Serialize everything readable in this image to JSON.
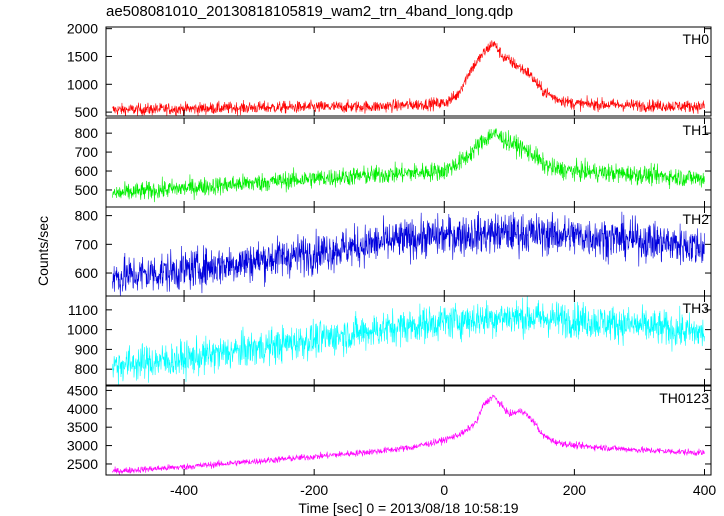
{
  "chart_data": {
    "type": "line",
    "title": "ae508081010_20130818105819_wam2_trn_4band_long.qdp",
    "xlabel": "Time [sec] 0 = 2013/08/18 10:58:19",
    "ylabel": "Counts/sec",
    "xlim": [
      -520,
      410
    ],
    "xticks": [
      -400,
      -200,
      0,
      200,
      400
    ],
    "grid": false,
    "panels": [
      {
        "name": "TH0",
        "color": "#ff0000",
        "ylim": [
          430,
          2030
        ],
        "yticks": [
          500,
          1000,
          1500,
          2000
        ],
        "noise": 55,
        "x": [
          -510,
          -400,
          -300,
          -200,
          -100,
          0,
          20,
          40,
          60,
          75,
          90,
          110,
          130,
          150,
          170,
          200,
          300,
          400
        ],
        "y": [
          540,
          560,
          580,
          590,
          600,
          660,
          800,
          1250,
          1550,
          1750,
          1500,
          1350,
          1200,
          900,
          750,
          650,
          620,
          600
        ]
      },
      {
        "name": "TH1",
        "color": "#00ee00",
        "ylim": [
          410,
          880
        ],
        "yticks": [
          500,
          600,
          700,
          800
        ],
        "noise": 25,
        "x": [
          -510,
          -400,
          -300,
          -200,
          -100,
          0,
          30,
          60,
          75,
          90,
          120,
          140,
          150,
          170,
          200,
          300,
          400
        ],
        "y": [
          480,
          510,
          535,
          560,
          580,
          600,
          660,
          760,
          800,
          770,
          720,
          680,
          640,
          610,
          600,
          580,
          560
        ]
      },
      {
        "name": "TH2",
        "color": "#0000dd",
        "ylim": [
          520,
          830
        ],
        "yticks": [
          600,
          700,
          800
        ],
        "noise": 35,
        "x": [
          -510,
          -400,
          -300,
          -200,
          -100,
          -50,
          0,
          100,
          200,
          300,
          400
        ],
        "y": [
          585,
          610,
          640,
          670,
          705,
          720,
          730,
          740,
          730,
          715,
          690
        ]
      },
      {
        "name": "TH3",
        "color": "#00ffff",
        "ylim": [
          720,
          1170
        ],
        "yticks": [
          800,
          900,
          1000,
          1100
        ],
        "noise": 45,
        "x": [
          -510,
          -400,
          -300,
          -200,
          -100,
          0,
          100,
          200,
          300,
          400
        ],
        "y": [
          820,
          850,
          900,
          950,
          1000,
          1040,
          1065,
          1050,
          1020,
          980
        ]
      },
      {
        "name": "TH0123",
        "color": "#ff00ff",
        "ylim": [
          2200,
          4620
        ],
        "yticks": [
          2500,
          3000,
          3500,
          4000,
          4500
        ],
        "noise": 45,
        "x": [
          -510,
          -400,
          -300,
          -200,
          -100,
          -50,
          0,
          30,
          50,
          60,
          75,
          90,
          100,
          120,
          140,
          150,
          170,
          200,
          300,
          400
        ],
        "y": [
          2300,
          2420,
          2560,
          2700,
          2850,
          2950,
          3150,
          3350,
          3650,
          4100,
          4350,
          4050,
          3850,
          3950,
          3600,
          3300,
          3100,
          3000,
          2880,
          2800
        ]
      }
    ]
  }
}
